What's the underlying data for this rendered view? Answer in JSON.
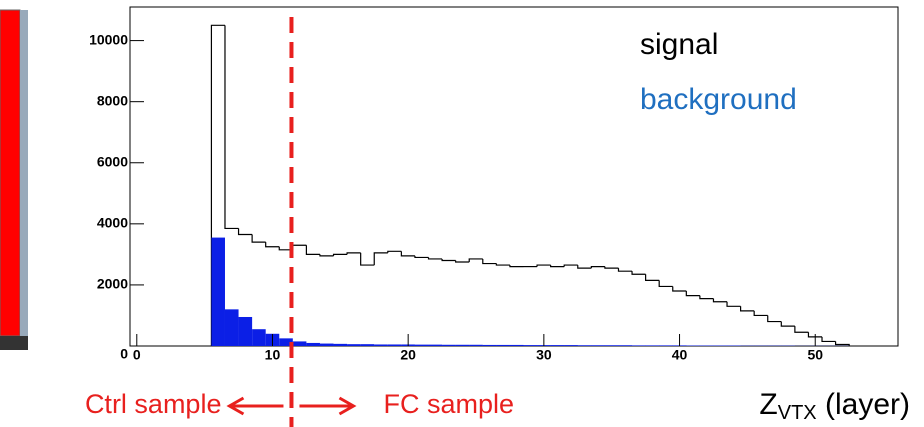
{
  "chart_data": {
    "type": "histogram",
    "bins": [
      5.5,
      6.5,
      7.5,
      8.5,
      9.5,
      10.5,
      11.5,
      12.5,
      13.5,
      14.5,
      15.5,
      16.5,
      17.5,
      18.5,
      19.5,
      20.5,
      21.5,
      22.5,
      23.5,
      24.5,
      25.5,
      26.5,
      27.5,
      28.5,
      29.5,
      30.5,
      31.5,
      32.5,
      33.5,
      34.5,
      35.5,
      36.5,
      37.5,
      38.5,
      39.5,
      40.5,
      41.5,
      42.5,
      43.5,
      44.5,
      45.5,
      46.5,
      47.5,
      48.5,
      49.5,
      50.5,
      51.5,
      52.5
    ],
    "series": [
      {
        "name": "signal",
        "color": "#000000",
        "fill": false,
        "values": [
          10500,
          3850,
          3650,
          3400,
          3250,
          3150,
          3300,
          3000,
          2950,
          3000,
          3050,
          2650,
          3050,
          3100,
          2950,
          2900,
          2850,
          2800,
          2750,
          2850,
          2700,
          2650,
          2600,
          2600,
          2650,
          2600,
          2650,
          2550,
          2600,
          2550,
          2450,
          2350,
          2150,
          1950,
          1800,
          1650,
          1550,
          1450,
          1300,
          1150,
          1000,
          800,
          650,
          450,
          300,
          150,
          50
        ]
      },
      {
        "name": "background",
        "color": "#0b1fe6",
        "legend_color": "#1f6fc0",
        "fill": true,
        "values": [
          3550,
          1200,
          950,
          550,
          400,
          250,
          150,
          100,
          80,
          70,
          60,
          60,
          50,
          50,
          50,
          45,
          45,
          40,
          40,
          40,
          35,
          35,
          35,
          30,
          30,
          30,
          30,
          25,
          25,
          25,
          25,
          20,
          20,
          20,
          20,
          15,
          15,
          15,
          15,
          10,
          10,
          10,
          10,
          5,
          5,
          5,
          5
        ]
      }
    ],
    "xlim": [
      -0.5,
      56.1
    ],
    "ylim": [
      0,
      11100
    ],
    "xticks": [
      0,
      10,
      20,
      30,
      40,
      50
    ],
    "yticks": [
      0,
      2000,
      4000,
      6000,
      8000,
      10000
    ],
    "x_label": {
      "main": "Z",
      "sub": "VTX",
      "rest": " (layer)"
    },
    "cut": {
      "x": 11.4,
      "color": "#e8201e"
    },
    "annotations": [
      "Ctrl sample",
      "FC sample"
    ]
  }
}
